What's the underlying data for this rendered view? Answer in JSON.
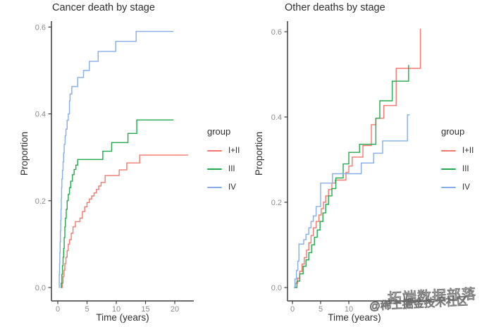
{
  "watermark": {
    "line1": "拓端数据部落",
    "line2": "@稀土掘金技术社区"
  },
  "chart_data": [
    {
      "type": "line",
      "subtype": "step-cumulative-incidence",
      "title": "Cancer death by stage",
      "xlabel": "Time (years)",
      "ylabel": "Proportion",
      "xlim": [
        0,
        23
      ],
      "ylim": [
        0,
        0.62
      ],
      "xticks": [
        "0",
        "5",
        "10",
        "15",
        "20"
      ],
      "yticks": [
        "0.0",
        "0.2",
        "0.4",
        "0.6"
      ],
      "grid": false,
      "legend_title": "group",
      "legend_position": "right",
      "series": [
        {
          "name": "I+II",
          "color": "#F4776F",
          "points": [
            [
              0.6,
              0
            ],
            [
              0.75,
              0.01
            ],
            [
              0.9,
              0.025
            ],
            [
              1.05,
              0.04
            ],
            [
              1.2,
              0.055
            ],
            [
              1.4,
              0.07
            ],
            [
              1.6,
              0.085
            ],
            [
              1.8,
              0.1
            ],
            [
              2.0,
              0.11
            ],
            [
              2.3,
              0.125
            ],
            [
              2.6,
              0.14
            ],
            [
              3.0,
              0.152
            ],
            [
              3.8,
              0.16
            ],
            [
              4.2,
              0.175
            ],
            [
              4.6,
              0.186
            ],
            [
              5.0,
              0.196
            ],
            [
              5.4,
              0.204
            ],
            [
              5.8,
              0.211
            ],
            [
              6.2,
              0.218
            ],
            [
              6.6,
              0.226
            ],
            [
              7.0,
              0.234
            ],
            [
              7.4,
              0.242
            ],
            [
              8.1,
              0.258
            ],
            [
              10.5,
              0.271
            ],
            [
              11.8,
              0.287
            ],
            [
              14.0,
              0.305
            ],
            [
              22.3,
              0.305
            ]
          ]
        },
        {
          "name": "III",
          "color": "#23A84B",
          "points": [
            [
              0.5,
              0
            ],
            [
              0.6,
              0.01
            ],
            [
              0.7,
              0.03
            ],
            [
              0.8,
              0.05
            ],
            [
              0.9,
              0.07
            ],
            [
              1.0,
              0.09
            ],
            [
              1.1,
              0.115
            ],
            [
              1.2,
              0.14
            ],
            [
              1.3,
              0.16
            ],
            [
              1.45,
              0.18
            ],
            [
              1.6,
              0.2
            ],
            [
              1.8,
              0.215
            ],
            [
              2.0,
              0.23
            ],
            [
              2.2,
              0.245
            ],
            [
              2.5,
              0.26
            ],
            [
              2.8,
              0.272
            ],
            [
              3.1,
              0.282
            ],
            [
              3.4,
              0.295
            ],
            [
              7.7,
              0.314
            ],
            [
              9.2,
              0.334
            ],
            [
              12.0,
              0.355
            ],
            [
              13.5,
              0.386
            ],
            [
              19.8,
              0.386
            ]
          ]
        },
        {
          "name": "IV",
          "color": "#86ADE8",
          "points": [
            [
              0.2,
              0
            ],
            [
              0.25,
              0.03
            ],
            [
              0.3,
              0.055
            ],
            [
              0.35,
              0.08
            ],
            [
              0.4,
              0.105
            ],
            [
              0.45,
              0.13
            ],
            [
              0.5,
              0.155
            ],
            [
              0.55,
              0.18
            ],
            [
              0.6,
              0.205
            ],
            [
              0.65,
              0.23
            ],
            [
              0.7,
              0.25
            ],
            [
              0.8,
              0.27
            ],
            [
              0.9,
              0.29
            ],
            [
              1.0,
              0.31
            ],
            [
              1.1,
              0.33
            ],
            [
              1.25,
              0.35
            ],
            [
              1.4,
              0.365
            ],
            [
              1.6,
              0.385
            ],
            [
              1.8,
              0.4
            ],
            [
              2.0,
              0.43
            ],
            [
              2.1,
              0.446
            ],
            [
              2.4,
              0.463
            ],
            [
              3.4,
              0.484
            ],
            [
              4.4,
              0.5
            ],
            [
              5.4,
              0.521
            ],
            [
              6.9,
              0.544
            ],
            [
              9.9,
              0.567
            ],
            [
              13.4,
              0.59
            ],
            [
              19.8,
              0.59
            ]
          ]
        }
      ]
    },
    {
      "type": "line",
      "subtype": "step-cumulative-incidence",
      "title": "Other deaths by stage",
      "xlabel": "Time (years)",
      "ylabel": "Proportion",
      "xlim": [
        0,
        23
      ],
      "ylim": [
        0,
        0.62
      ],
      "xticks": [
        "0",
        "5",
        "10"
      ],
      "yticks": [
        "0.0",
        "0.2",
        "0.4",
        "0.6"
      ],
      "grid": false,
      "legend_title": "group",
      "legend_position": "right",
      "series": [
        {
          "name": "I+II",
          "color": "#F4776F",
          "points": [
            [
              0.3,
              0
            ],
            [
              0.5,
              0.01
            ],
            [
              0.9,
              0.022
            ],
            [
              1.3,
              0.038
            ],
            [
              1.7,
              0.055
            ],
            [
              2.1,
              0.07
            ],
            [
              2.5,
              0.088
            ],
            [
              2.9,
              0.105
            ],
            [
              3.3,
              0.122
            ],
            [
              3.7,
              0.14
            ],
            [
              4.2,
              0.155
            ],
            [
              4.7,
              0.17
            ],
            [
              5.1,
              0.185
            ],
            [
              5.5,
              0.2
            ],
            [
              5.9,
              0.215
            ],
            [
              6.4,
              0.23
            ],
            [
              7.0,
              0.245
            ],
            [
              7.6,
              0.252
            ],
            [
              9.5,
              0.27
            ],
            [
              10.0,
              0.285
            ],
            [
              10.6,
              0.306
            ],
            [
              12.5,
              0.333
            ],
            [
              14.0,
              0.382
            ],
            [
              14.8,
              0.397
            ],
            [
              16.2,
              0.427
            ],
            [
              18.4,
              0.514
            ],
            [
              22.7,
              0.607
            ]
          ]
        },
        {
          "name": "III",
          "color": "#23A84B",
          "points": [
            [
              0.4,
              0
            ],
            [
              0.8,
              0.015
            ],
            [
              1.3,
              0.032
            ],
            [
              1.9,
              0.05
            ],
            [
              2.4,
              0.065
            ],
            [
              2.9,
              0.082
            ],
            [
              3.4,
              0.1
            ],
            [
              3.9,
              0.118
            ],
            [
              4.4,
              0.135
            ],
            [
              4.9,
              0.155
            ],
            [
              5.4,
              0.175
            ],
            [
              5.9,
              0.195
            ],
            [
              6.4,
              0.215
            ],
            [
              7.0,
              0.232
            ],
            [
              7.7,
              0.257
            ],
            [
              9.0,
              0.29
            ],
            [
              10.0,
              0.317
            ],
            [
              11.9,
              0.336
            ],
            [
              14.8,
              0.397
            ],
            [
              15.5,
              0.438
            ],
            [
              17.7,
              0.484
            ],
            [
              20.6,
              0.522
            ]
          ]
        },
        {
          "name": "IV",
          "color": "#86ADE8",
          "points": [
            [
              0.25,
              0
            ],
            [
              0.45,
              0.02
            ],
            [
              0.7,
              0.04
            ],
            [
              0.95,
              0.062
            ],
            [
              1.15,
              0.102
            ],
            [
              2.0,
              0.112
            ],
            [
              2.4,
              0.125
            ],
            [
              2.9,
              0.14
            ],
            [
              3.3,
              0.155
            ],
            [
              3.7,
              0.168
            ],
            [
              4.2,
              0.19
            ],
            [
              5.0,
              0.245
            ],
            [
              7.1,
              0.267
            ],
            [
              12.2,
              0.292
            ],
            [
              14.4,
              0.315
            ],
            [
              16.0,
              0.344
            ],
            [
              20.4,
              0.405
            ],
            [
              20.8,
              0.405
            ]
          ]
        }
      ]
    }
  ]
}
